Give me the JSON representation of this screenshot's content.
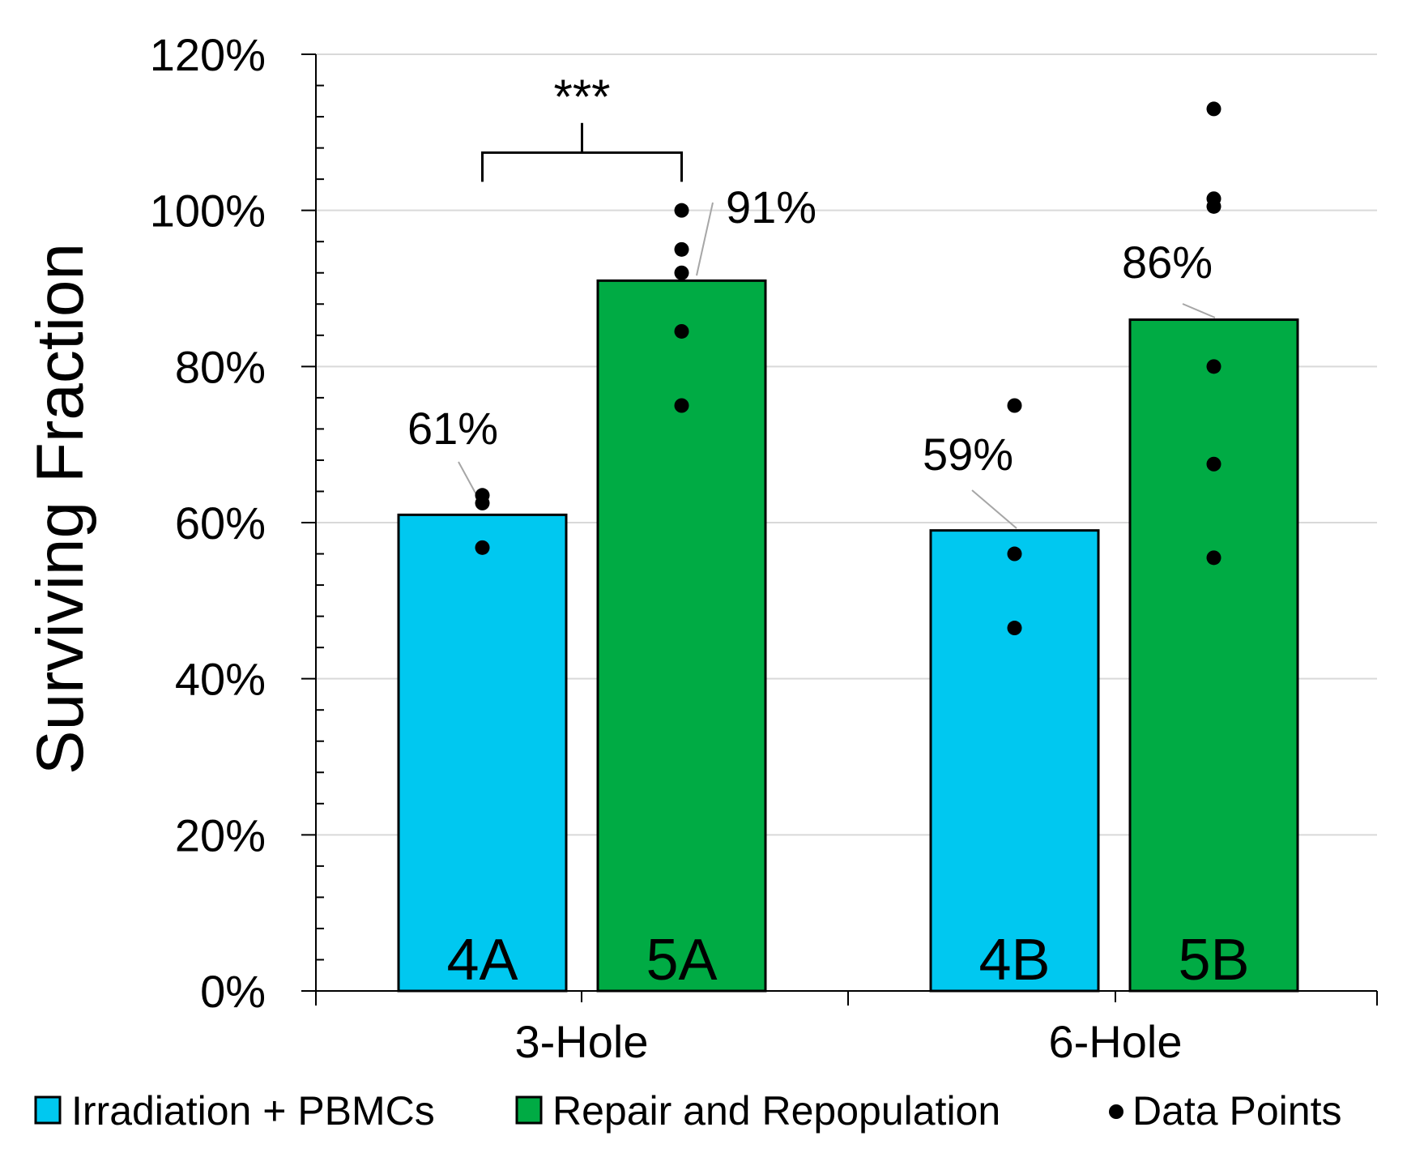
{
  "chart_data": {
    "type": "bar",
    "title": "",
    "ylabel": "Surviving Fraction",
    "xlabel": "",
    "ylim": [
      0,
      120
    ],
    "yticks": [
      "0%",
      "20%",
      "40%",
      "60%",
      "80%",
      "100%",
      "120%"
    ],
    "categories": [
      "3-Hole",
      "6-Hole"
    ],
    "series": [
      {
        "name": "Irradiation + PBMCs",
        "color": "#00c8f0",
        "values": [
          61,
          59
        ],
        "value_labels": [
          "61%",
          "59%"
        ],
        "bar_labels": [
          "4A",
          "4B"
        ],
        "data_points": [
          [
            63.5,
            62.5,
            56.8
          ],
          [
            75,
            56,
            46.5
          ]
        ]
      },
      {
        "name": "Repair and Repopulation",
        "color": "#00ab44",
        "values": [
          91,
          86
        ],
        "value_labels": [
          "91%",
          "86%"
        ],
        "bar_labels": [
          "5A",
          "5B"
        ],
        "data_points": [
          [
            100,
            95,
            92,
            84.5,
            75
          ],
          [
            113,
            101.5,
            100.5,
            80,
            67.5,
            55.5
          ]
        ]
      }
    ],
    "annotations": [
      {
        "text": "***",
        "between": [
          "4A",
          "5A"
        ]
      }
    ],
    "legend": {
      "position": "bottom",
      "items": [
        "Irradiation + PBMCs",
        "Repair and Repopulation",
        "Data Points"
      ]
    },
    "grid": true
  }
}
